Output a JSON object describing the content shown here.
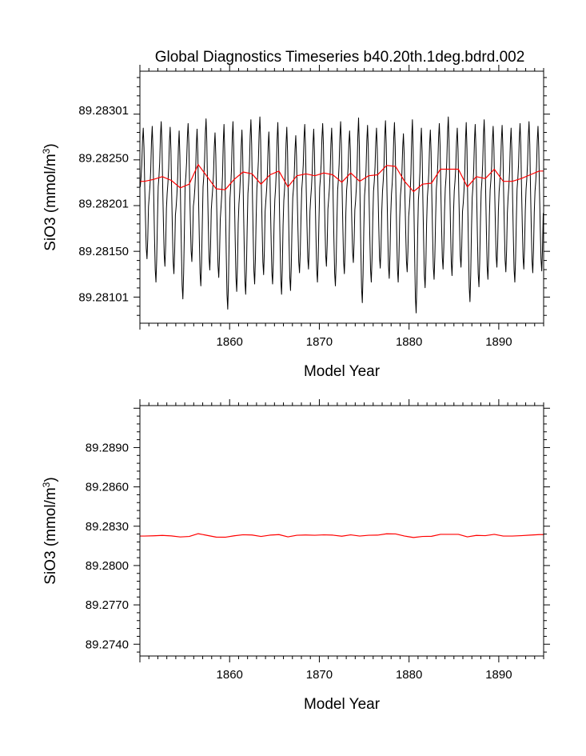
{
  "title": "Global Diagnostics Timeseries b40.20th.1deg.bdrd.002",
  "colors": {
    "monthly": "#000000",
    "annual": "#ff0000",
    "frame": "#000000"
  },
  "chart_data": [
    {
      "type": "line",
      "title": "Global Diagnostics Timeseries b40.20th.1deg.bdrd.002",
      "xlabel": "Model Year",
      "ylabel_main": "SiO3 (mmol/m",
      "ylabel_sup": "3",
      "ylabel_tail": ")",
      "xlim": [
        1850,
        1895
      ],
      "ylim": [
        89.28073,
        89.28343
      ],
      "xticks": [
        1860,
        1870,
        1880,
        1890
      ],
      "xtick_labels": [
        "1860",
        "1870",
        "1880",
        "1890"
      ],
      "yticks": [
        89.28101,
        89.2815,
        89.28201,
        89.2825,
        89.28301
      ],
      "ytick_labels": [
        "89.28101",
        "89.28150",
        "89.28201",
        "89.28250",
        "89.28301"
      ],
      "series": [
        {
          "style": "monthly",
          "color": "#000000",
          "x_start": 1850.04,
          "x_step": 0.0833333,
          "annual_cycle_peak": [
            89.28282,
            89.28284,
            89.28289,
            89.28283,
            89.28279,
            89.28287,
            89.28281,
            89.28292,
            89.28277,
            89.28286,
            89.28289,
            89.2828,
            89.28291,
            89.28294,
            89.28278,
            89.28288,
            89.28283,
            89.28274,
            89.28286,
            89.28281,
            89.28287,
            89.28282,
            89.28289,
            89.28279,
            89.28293,
            89.28285,
            89.28282,
            89.2829,
            89.28288,
            89.28276,
            89.28291,
            89.28282,
            89.2828,
            89.28287,
            89.28294,
            89.28282,
            89.28288,
            89.28286,
            89.28291,
            89.28284,
            89.28285,
            89.28282,
            89.28287,
            89.28289,
            89.28284
          ],
          "annual_cycle_trough": [
            89.28142,
            89.28117,
            89.28134,
            89.28126,
            89.28099,
            89.28139,
            89.28113,
            89.2813,
            89.28122,
            89.28088,
            89.28107,
            89.28104,
            89.28115,
            89.28125,
            89.28115,
            89.28104,
            89.28108,
            89.28127,
            89.28131,
            89.28117,
            89.28134,
            89.28113,
            89.28126,
            89.28138,
            89.28095,
            89.28117,
            89.28132,
            89.28121,
            89.28117,
            89.28128,
            89.28084,
            89.28111,
            89.2812,
            89.28131,
            89.28124,
            89.28133,
            89.28096,
            89.28112,
            89.2812,
            89.28133,
            89.28128,
            89.28117,
            89.28131,
            89.28127,
            89.28129
          ]
        },
        {
          "style": "annual",
          "color": "#ff0000",
          "x": [
            1850.5,
            1851.5,
            1852.5,
            1853.5,
            1854.5,
            1855.5,
            1856.5,
            1857.5,
            1858.5,
            1859.5,
            1860.5,
            1861.5,
            1862.5,
            1863.5,
            1864.5,
            1865.5,
            1866.5,
            1867.5,
            1868.5,
            1869.5,
            1870.5,
            1871.5,
            1872.5,
            1873.5,
            1874.5,
            1875.5,
            1876.5,
            1877.5,
            1878.5,
            1879.5,
            1880.5,
            1881.5,
            1882.5,
            1883.5,
            1884.5,
            1885.5,
            1886.5,
            1887.5,
            1888.5,
            1889.5,
            1890.5,
            1891.5,
            1892.5,
            1893.5,
            1894.5
          ],
          "y": [
            89.28225,
            89.28227,
            89.2823,
            89.28226,
            89.28218,
            89.28222,
            89.28243,
            89.2823,
            89.28217,
            89.28216,
            89.28227,
            89.28235,
            89.28233,
            89.28222,
            89.28232,
            89.28236,
            89.28219,
            89.28231,
            89.28233,
            89.28231,
            89.28234,
            89.28232,
            89.28224,
            89.28234,
            89.28225,
            89.28231,
            89.28232,
            89.28242,
            89.28241,
            89.28225,
            89.28214,
            89.28222,
            89.28223,
            89.28238,
            89.28238,
            89.28238,
            89.28219,
            89.2823,
            89.28228,
            89.28238,
            89.28225,
            89.28225,
            89.28228,
            89.28232,
            89.28236
          ]
        }
      ]
    },
    {
      "type": "line",
      "xlabel": "Model Year",
      "ylabel_main": "SiO3 (mmol/m",
      "ylabel_sup": "3",
      "ylabel_tail": ")",
      "xlim": [
        1850,
        1895
      ],
      "ylim": [
        89.2731,
        89.2922
      ],
      "xticks": [
        1860,
        1870,
        1880,
        1890
      ],
      "xtick_labels": [
        "1860",
        "1870",
        "1880",
        "1890"
      ],
      "yticks": [
        89.274,
        89.277,
        89.28,
        89.283,
        89.286,
        89.289
      ],
      "ytick_labels": [
        "89.2740",
        "89.2770",
        "89.2800",
        "89.2830",
        "89.2860",
        "89.2890"
      ],
      "series": [
        {
          "style": "annual",
          "color": "#ff0000",
          "ref": 0
        }
      ]
    }
  ]
}
